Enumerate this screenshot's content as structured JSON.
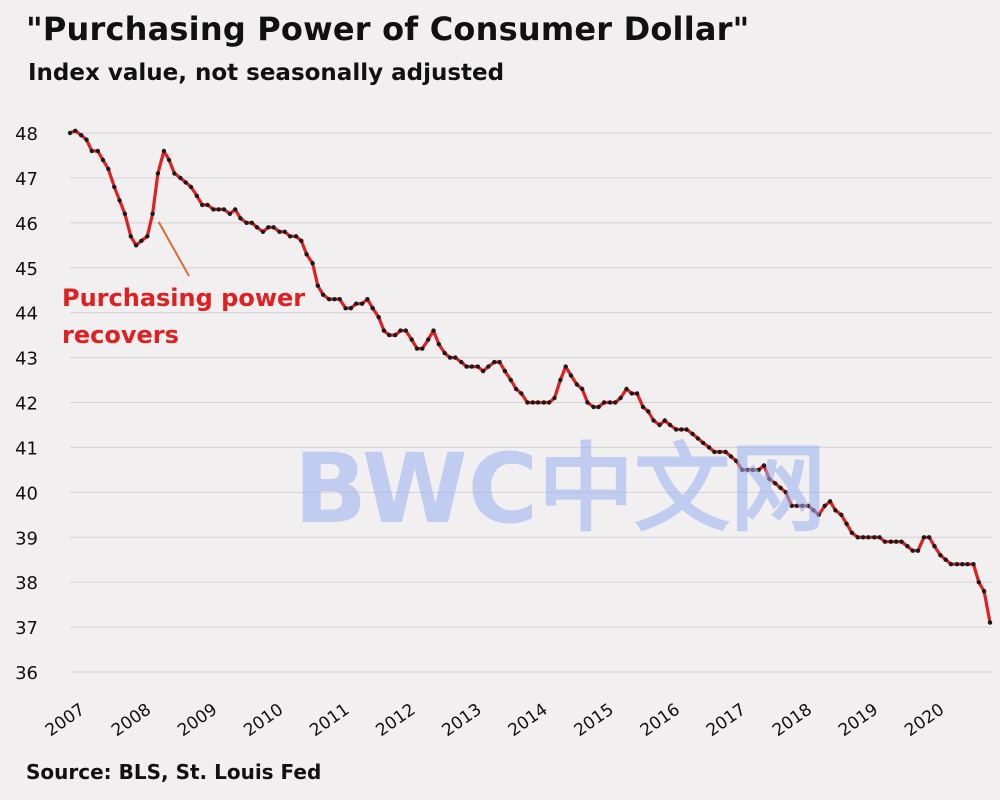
{
  "title": "\"Purchasing Power of Consumer Dollar\"",
  "subtitle": "Index value, not seasonally adjusted",
  "source": "Source: BLS, St. Louis Fed",
  "watermark": "BWC中文网",
  "chart_data": {
    "type": "line",
    "title": "\"Purchasing Power of Consumer Dollar\"",
    "subtitle": "Index value, not seasonally adjusted",
    "xlabel": "",
    "ylabel": "",
    "ylim": [
      36,
      48
    ],
    "xlim": [
      2007,
      2020.95
    ],
    "grid": true,
    "yticks": [
      36,
      37,
      38,
      39,
      40,
      41,
      42,
      43,
      44,
      45,
      46,
      47,
      48
    ],
    "xticks": [
      "2007",
      "2008",
      "2009",
      "2010",
      "2011",
      "2012",
      "2013",
      "2014",
      "2015",
      "2016",
      "2017",
      "2018",
      "2019",
      "2020"
    ],
    "colors": {
      "line": "#e02020",
      "markers": "#1a1a1a",
      "annotation": "#e02020",
      "grid": "#d4d2d3"
    },
    "annotation": {
      "text_lines": [
        "Purchasing power",
        "recovers"
      ],
      "points_to": {
        "x": 2008.25,
        "y": 46.2
      }
    },
    "series": [
      {
        "x": [
          2007.0,
          2007.08,
          2007.17,
          2007.25,
          2007.33,
          2007.42,
          2007.5,
          2007.58,
          2007.67,
          2007.75,
          2007.83,
          2007.92,
          2008.0,
          2008.08,
          2008.17,
          2008.25,
          2008.33,
          2008.42,
          2008.5,
          2008.58,
          2008.67,
          2008.75,
          2008.83,
          2008.92,
          2009.0,
          2009.08,
          2009.17,
          2009.25,
          2009.33,
          2009.42,
          2009.5,
          2009.58,
          2009.67,
          2009.75,
          2009.83,
          2009.92,
          2010.0,
          2010.08,
          2010.17,
          2010.25,
          2010.33,
          2010.42,
          2010.5,
          2010.58,
          2010.67,
          2010.75,
          2010.83,
          2010.92,
          2011.0,
          2011.08,
          2011.17,
          2011.25,
          2011.33,
          2011.42,
          2011.5,
          2011.58,
          2011.67,
          2011.75,
          2011.83,
          2011.92,
          2012.0,
          2012.08,
          2012.17,
          2012.25,
          2012.33,
          2012.42,
          2012.5,
          2012.58,
          2012.67,
          2012.75,
          2012.83,
          2012.92,
          2013.0,
          2013.08,
          2013.17,
          2013.25,
          2013.33,
          2013.42,
          2013.5,
          2013.58,
          2013.67,
          2013.75,
          2013.83,
          2013.92,
          2014.0,
          2014.08,
          2014.17,
          2014.25,
          2014.33,
          2014.42,
          2014.5,
          2014.58,
          2014.67,
          2014.75,
          2014.83,
          2014.92,
          2015.0,
          2015.08,
          2015.17,
          2015.25,
          2015.33,
          2015.42,
          2015.5,
          2015.58,
          2015.67,
          2015.75,
          2015.83,
          2015.92,
          2016.0,
          2016.08,
          2016.17,
          2016.25,
          2016.33,
          2016.42,
          2016.5,
          2016.58,
          2016.67,
          2016.75,
          2016.83,
          2016.92,
          2017.0,
          2017.08,
          2017.17,
          2017.25,
          2017.33,
          2017.42,
          2017.5,
          2017.58,
          2017.67,
          2017.75,
          2017.83,
          2017.92,
          2018.0,
          2018.08,
          2018.17,
          2018.25,
          2018.33,
          2018.42,
          2018.5,
          2018.58,
          2018.67,
          2018.75,
          2018.83,
          2018.92,
          2019.0,
          2019.08,
          2019.17,
          2019.25,
          2019.33,
          2019.42,
          2019.5,
          2019.58,
          2019.67,
          2019.75,
          2019.83,
          2019.92,
          2020.0,
          2020.08,
          2020.17,
          2020.25,
          2020.33,
          2020.42,
          2020.5,
          2020.58,
          2020.67,
          2020.75,
          2020.83,
          2020.92
        ],
        "y": [
          48.0,
          48.05,
          47.95,
          47.85,
          47.6,
          47.6,
          47.4,
          47.2,
          46.8,
          46.5,
          46.2,
          45.7,
          45.5,
          45.6,
          45.7,
          46.2,
          47.1,
          47.6,
          47.4,
          47.1,
          47.0,
          46.9,
          46.8,
          46.6,
          46.4,
          46.4,
          46.3,
          46.3,
          46.3,
          46.2,
          46.3,
          46.1,
          46.0,
          46.0,
          45.9,
          45.8,
          45.9,
          45.9,
          45.8,
          45.8,
          45.7,
          45.7,
          45.6,
          45.3,
          45.1,
          44.6,
          44.4,
          44.3,
          44.3,
          44.3,
          44.1,
          44.1,
          44.2,
          44.2,
          44.3,
          44.1,
          43.9,
          43.6,
          43.5,
          43.5,
          43.6,
          43.6,
          43.4,
          43.2,
          43.2,
          43.4,
          43.6,
          43.3,
          43.1,
          43.0,
          43.0,
          42.9,
          42.8,
          42.8,
          42.8,
          42.7,
          42.8,
          42.9,
          42.9,
          42.7,
          42.5,
          42.3,
          42.2,
          42.0,
          42.0,
          42.0,
          42.0,
          42.0,
          42.1,
          42.5,
          42.8,
          42.6,
          42.4,
          42.3,
          42.0,
          41.9,
          41.9,
          42.0,
          42.0,
          42.0,
          42.1,
          42.3,
          42.2,
          42.2,
          41.9,
          41.8,
          41.6,
          41.5,
          41.6,
          41.5,
          41.4,
          41.4,
          41.4,
          41.3,
          41.2,
          41.1,
          41.0,
          40.9,
          40.9,
          40.9,
          40.8,
          40.7,
          40.5,
          40.5,
          40.5,
          40.5,
          40.6,
          40.3,
          40.2,
          40.1,
          40.0,
          39.7,
          39.7,
          39.7,
          39.7,
          39.6,
          39.5,
          39.7,
          39.8,
          39.6,
          39.5,
          39.3,
          39.1,
          39.0,
          39.0,
          39.0,
          39.0,
          39.0,
          38.9,
          38.9,
          38.9,
          38.9,
          38.8,
          38.7,
          38.7,
          39.0,
          39.0,
          38.8,
          38.6,
          38.5,
          38.4,
          38.4,
          38.4,
          38.4,
          38.4,
          38.0,
          37.8,
          37.1
        ]
      }
    ]
  }
}
